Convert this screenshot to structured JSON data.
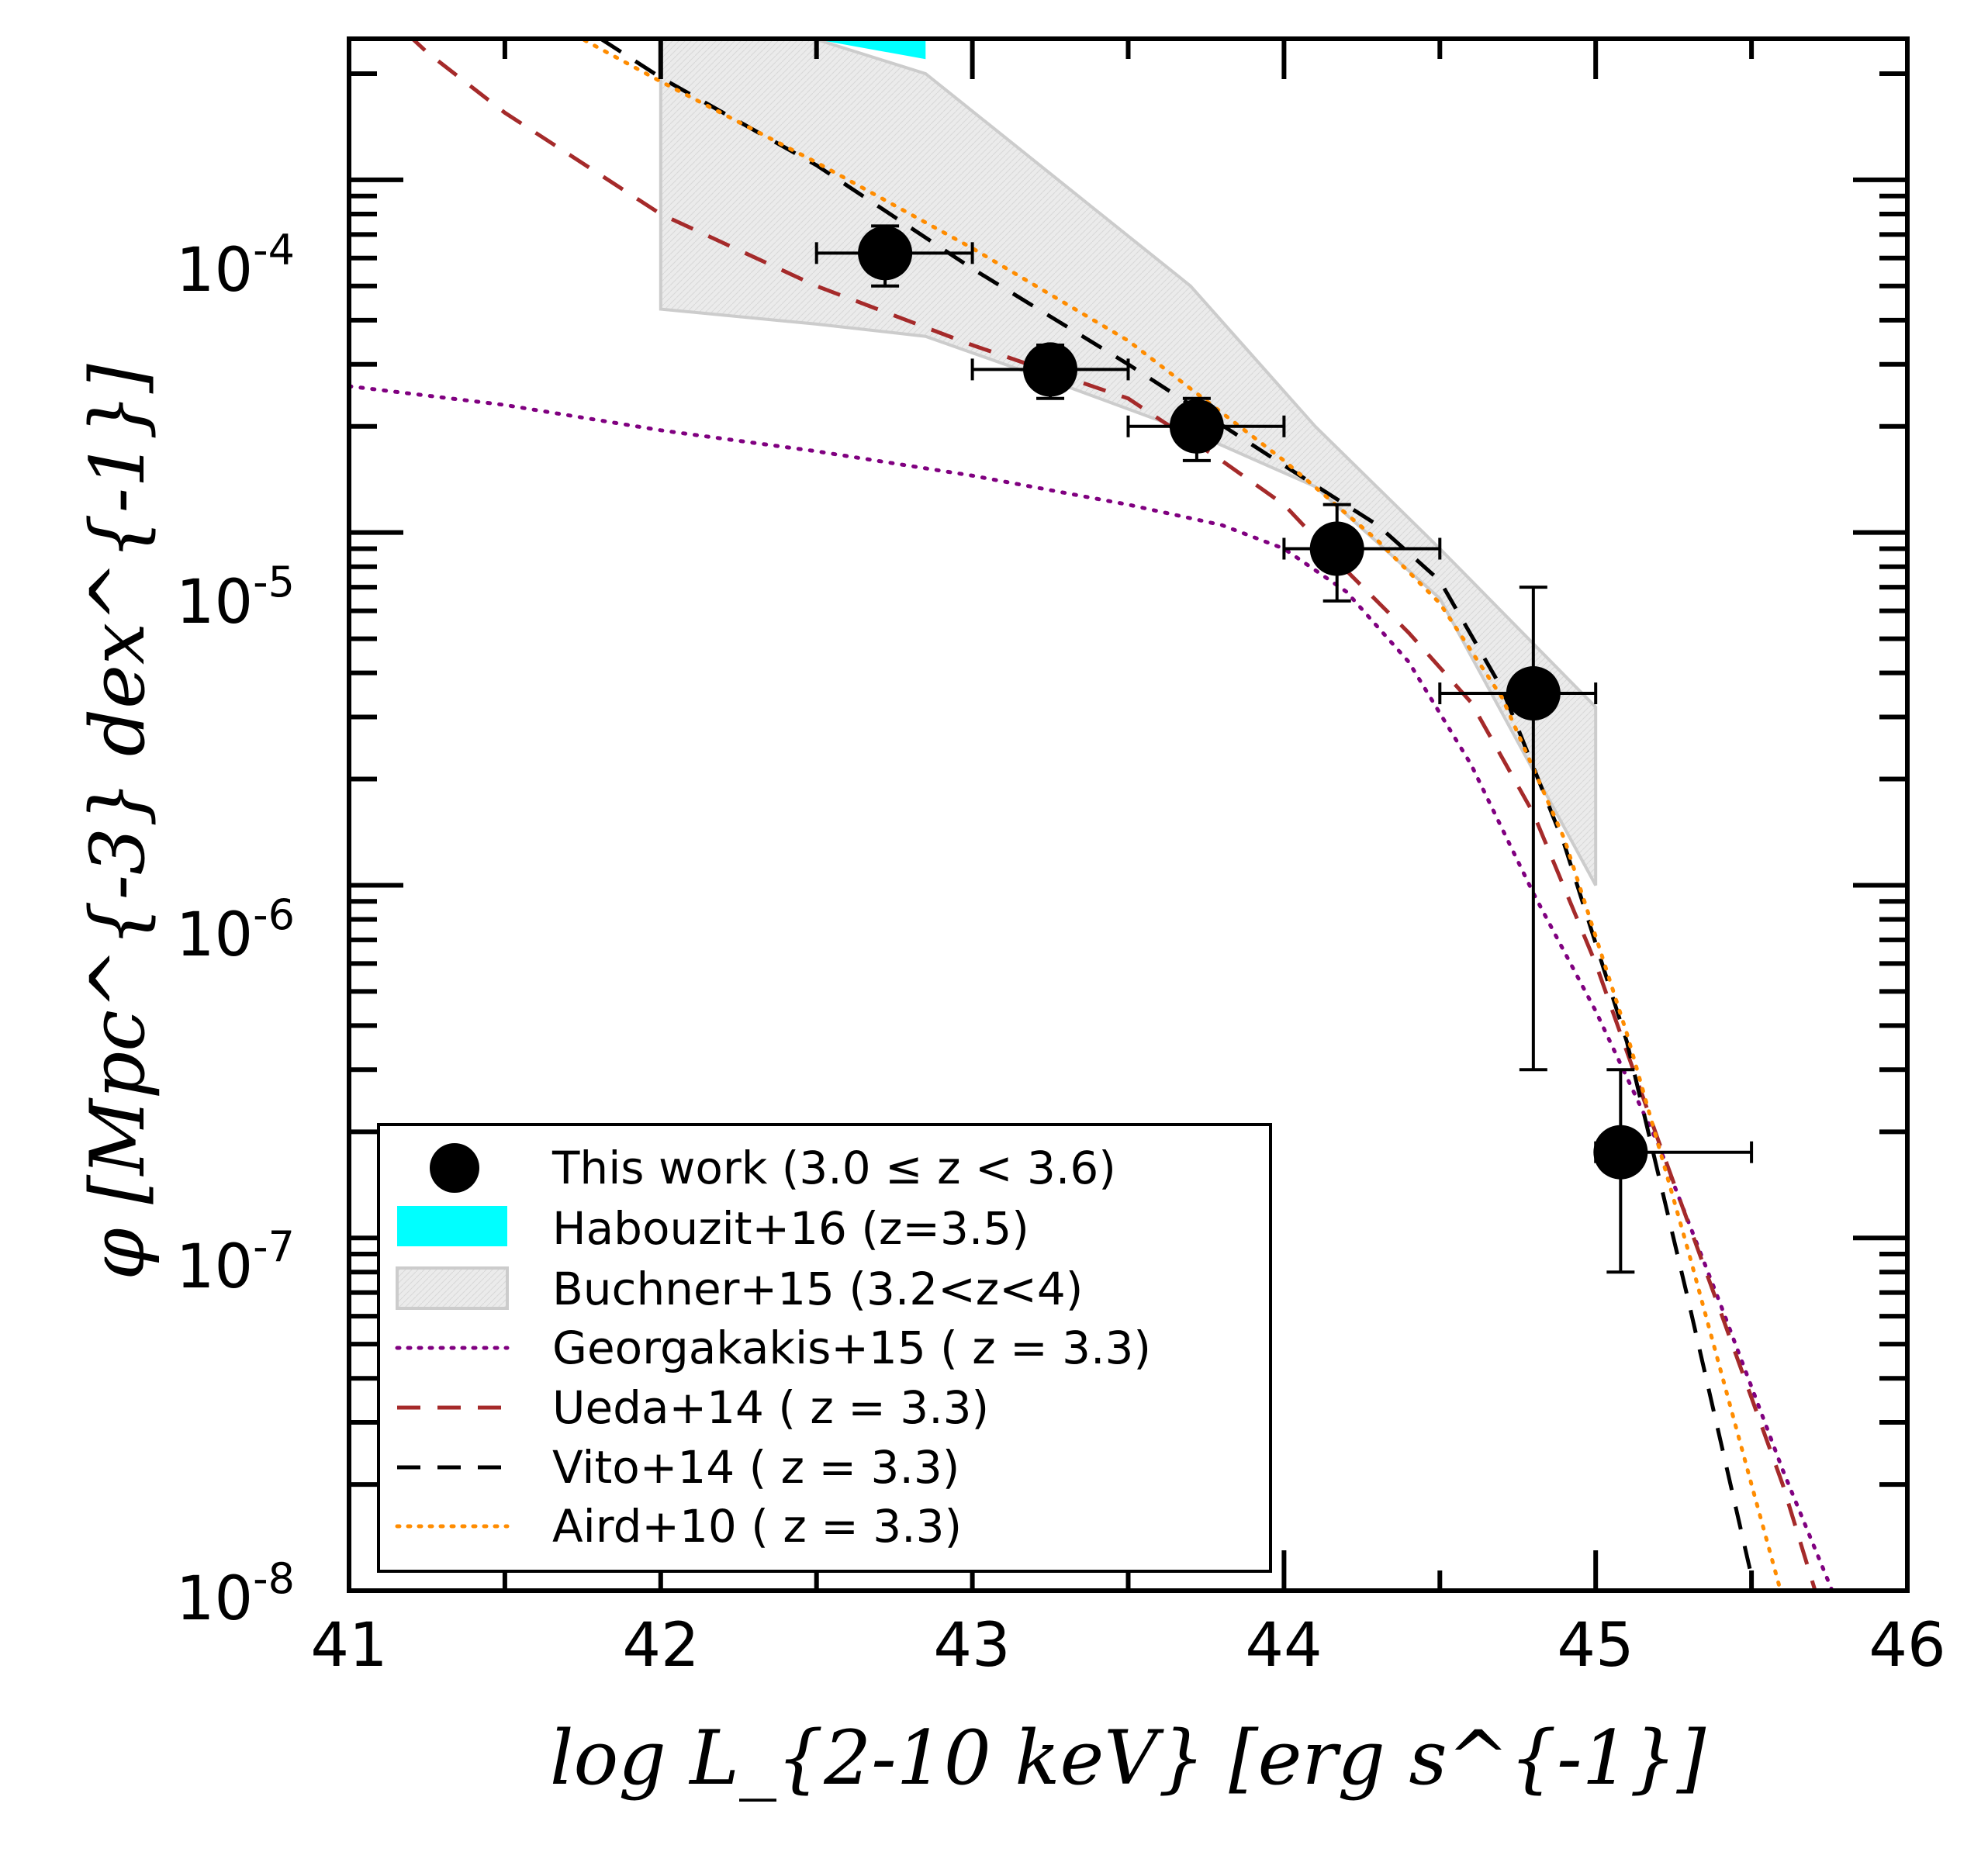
{
  "chart_data": {
    "type": "scatter",
    "title": "",
    "xlabel": "log L_{2-10 keV} [erg s^{-1}]",
    "ylabel": "φ [Mpc^{-3} dex^{-1}]",
    "xlim": [
      41,
      46
    ],
    "ylim_log10": [
      -8,
      -3.6
    ],
    "yscale": "log",
    "x_ticks": [
      "41",
      "42",
      "43",
      "44",
      "45",
      "46"
    ],
    "y_ticks": [
      {
        "base": "10",
        "exp": "-4",
        "log10": -4
      },
      {
        "base": "10",
        "exp": "-5",
        "log10": -5
      },
      {
        "base": "10",
        "exp": "-6",
        "log10": -6
      },
      {
        "base": "10",
        "exp": "-7",
        "log10": -7
      },
      {
        "base": "10",
        "exp": "-8",
        "log10": -8
      }
    ],
    "legend_position": "lower-left",
    "this_work": {
      "label": "This work (3.0 ≤ z < 3.6)",
      "points": [
        {
          "x": 42.72,
          "xlo": 42.5,
          "xhi": 43.0,
          "y": 6.2e-05,
          "ylo": 5e-05,
          "yhi": 7.4e-05
        },
        {
          "x": 43.25,
          "xlo": 43.0,
          "xhi": 43.5,
          "y": 2.9e-05,
          "ylo": 2.4e-05,
          "yhi": 3.4e-05
        },
        {
          "x": 43.72,
          "xlo": 43.5,
          "xhi": 44.0,
          "y": 2e-05,
          "ylo": 1.6e-05,
          "yhi": 2.4e-05
        },
        {
          "x": 44.17,
          "xlo": 44.0,
          "xhi": 44.5,
          "y": 9e-06,
          "ylo": 6.4e-06,
          "yhi": 1.2e-05
        },
        {
          "x": 44.8,
          "xlo": 44.5,
          "xhi": 45.0,
          "y": 3.5e-06,
          "ylo": 3e-07,
          "yhi": 7e-06
        },
        {
          "x": 45.08,
          "xlo": 45.0,
          "xhi": 45.5,
          "y": 1.75e-07,
          "ylo": 8e-08,
          "yhi": 3e-07
        }
      ]
    },
    "habouzit": {
      "label": "Habouzit+16 (z=3.5)",
      "color": "#00ffff",
      "polygon": [
        [
          42.5,
          0.00025
        ],
        [
          42.85,
          0.00025
        ],
        [
          42.85,
          0.00022
        ],
        [
          42.5,
          0.00025
        ]
      ]
    },
    "buchner": {
      "label": "Buchner+15 (3.2<z<4)",
      "color": "#ebebeb",
      "upper": [
        [
          42.0,
          0.00025
        ],
        [
          42.5,
          0.00025
        ],
        [
          42.85,
          0.0002
        ],
        [
          43.7,
          5e-05
        ],
        [
          44.1,
          2e-05
        ],
        [
          44.5,
          9e-06
        ],
        [
          45.0,
          3.2e-06
        ]
      ],
      "lower": [
        [
          42.0,
          4.3e-05
        ],
        [
          42.5,
          3.9e-05
        ],
        [
          42.85,
          3.6e-05
        ],
        [
          43.25,
          2.7e-05
        ],
        [
          43.72,
          1.9e-05
        ],
        [
          44.1,
          1.35e-05
        ],
        [
          44.5,
          6.5e-06
        ],
        [
          45.0,
          1e-06
        ]
      ]
    },
    "series": [
      {
        "name": "Georgakakis+15 ( z = 3.3)",
        "color": "#800080",
        "style": "dotted",
        "points": [
          [
            41.0,
            2.6e-05
          ],
          [
            41.5,
            2.3e-05
          ],
          [
            42.0,
            1.95e-05
          ],
          [
            42.5,
            1.7e-05
          ],
          [
            43.0,
            1.45e-05
          ],
          [
            43.5,
            1.2e-05
          ],
          [
            43.8,
            1.05e-05
          ],
          [
            44.0,
            9e-06
          ],
          [
            44.2,
            6.8e-06
          ],
          [
            44.4,
            4.3e-06
          ],
          [
            44.6,
            2.2e-06
          ],
          [
            44.8,
            9.5e-07
          ],
          [
            45.0,
            4.4e-07
          ],
          [
            45.2,
            1.85e-07
          ],
          [
            45.4,
            6.5e-08
          ],
          [
            45.6,
            2.2e-08
          ],
          [
            45.78,
            9e-09
          ]
        ]
      },
      {
        "name": "Ueda+14 ( z = 3.3)",
        "color": "#a52a2a",
        "style": "dashed",
        "points": [
          [
            41.0,
            0.00037
          ],
          [
            41.25,
            0.00023
          ],
          [
            41.5,
            0.000155
          ],
          [
            42.0,
            8e-05
          ],
          [
            42.5,
            5e-05
          ],
          [
            43.0,
            3.4e-05
          ],
          [
            43.5,
            2.4e-05
          ],
          [
            43.8,
            1.6e-05
          ],
          [
            44.0,
            1.2e-05
          ],
          [
            44.2,
            7.8e-06
          ],
          [
            44.4,
            5.2e-06
          ],
          [
            44.6,
            3.3e-06
          ],
          [
            44.8,
            1.6e-06
          ],
          [
            45.0,
            6e-07
          ],
          [
            45.2,
            1.9e-07
          ],
          [
            45.4,
            6.2e-08
          ],
          [
            45.6,
            2e-08
          ],
          [
            45.72,
            9e-09
          ]
        ]
      },
      {
        "name": "Vito+14 ( z = 3.3)",
        "color": "#000000",
        "style": "dashed",
        "points": [
          [
            41.38,
            0.00045
          ],
          [
            41.6,
            0.00033
          ],
          [
            42.0,
            0.000195
          ],
          [
            42.5,
            0.00011
          ],
          [
            43.0,
            5.6e-05
          ],
          [
            43.5,
            3e-05
          ],
          [
            44.0,
            1.55e-05
          ],
          [
            44.3,
            1.05e-05
          ],
          [
            44.5,
            7.3e-06
          ],
          [
            44.7,
            3.6e-06
          ],
          [
            44.9,
            1.3e-06
          ],
          [
            45.1,
            3.6e-07
          ],
          [
            45.3,
            6.5e-08
          ],
          [
            45.5,
            1.1e-08
          ]
        ]
      },
      {
        "name": "Aird+10 ( z = 3.3)",
        "color": "#ff8c00",
        "style": "dotted",
        "points": [
          [
            41.15,
            0.00045
          ],
          [
            41.5,
            0.00033
          ],
          [
            42.0,
            0.00019
          ],
          [
            42.5,
            0.000112
          ],
          [
            43.0,
            6.4e-05
          ],
          [
            43.5,
            3.5e-05
          ],
          [
            44.0,
            1.6e-05
          ],
          [
            44.3,
            9.5e-06
          ],
          [
            44.5,
            6.3e-06
          ],
          [
            44.7,
            3.4e-06
          ],
          [
            44.9,
            1.35e-06
          ],
          [
            45.1,
            3.8e-07
          ],
          [
            45.3,
            9e-08
          ],
          [
            45.5,
            2e-08
          ],
          [
            45.6,
            9.5e-09
          ]
        ]
      }
    ],
    "legend": [
      {
        "key": "this_work",
        "label": "This work (3.0 ≤ z < 3.6)"
      },
      {
        "key": "habouzit",
        "label": "Habouzit+16 (z=3.5)"
      },
      {
        "key": "buchner",
        "label": "Buchner+15 (3.2<z<4)"
      },
      {
        "key": "georgakakis",
        "label": "Georgakakis+15 ( z = 3.3)"
      },
      {
        "key": "ueda",
        "label": "Ueda+14 ( z = 3.3)"
      },
      {
        "key": "vito",
        "label": "Vito+14 ( z = 3.3)"
      },
      {
        "key": "aird",
        "label": "Aird+10 ( z = 3.3)"
      }
    ]
  }
}
